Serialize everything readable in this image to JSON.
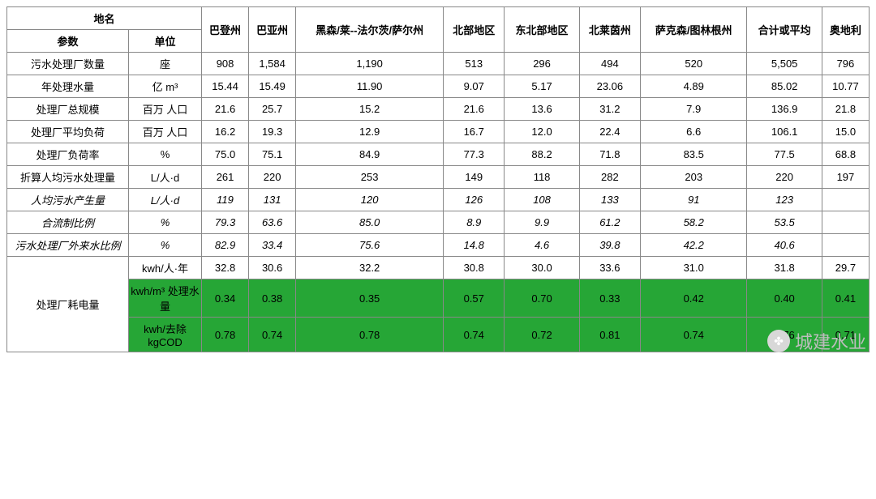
{
  "header": {
    "placeName": "地名",
    "param": "参数",
    "unit": "单位",
    "regions": [
      "巴登州",
      "巴亚州",
      "黑森/莱--法尔茨/萨尔州",
      "北部地区",
      "东北部地区",
      "北莱茵州",
      "萨克森/图林根州",
      "合计或平均",
      "奥地利"
    ]
  },
  "rows": [
    {
      "param": "污水处理厂数量",
      "unit": "座",
      "italic": false,
      "highlight": false,
      "cells": [
        "908",
        "1,584",
        "1,190",
        "513",
        "296",
        "494",
        "520",
        "5,505",
        "796"
      ]
    },
    {
      "param": "年处理水量",
      "unit": "亿 m³",
      "italic": false,
      "highlight": false,
      "cells": [
        "15.44",
        "15.49",
        "11.90",
        "9.07",
        "5.17",
        "23.06",
        "4.89",
        "85.02",
        "10.77"
      ]
    },
    {
      "param": "处理厂总规模",
      "unit": "百万 人口",
      "italic": false,
      "highlight": false,
      "cells": [
        "21.6",
        "25.7",
        "15.2",
        "21.6",
        "13.6",
        "31.2",
        "7.9",
        "136.9",
        "21.8"
      ]
    },
    {
      "param": "处理厂平均负荷",
      "unit": "百万 人口",
      "italic": false,
      "highlight": false,
      "cells": [
        "16.2",
        "19.3",
        "12.9",
        "16.7",
        "12.0",
        "22.4",
        "6.6",
        "106.1",
        "15.0"
      ]
    },
    {
      "param": "处理厂负荷率",
      "unit": "%",
      "italic": false,
      "highlight": false,
      "cells": [
        "75.0",
        "75.1",
        "84.9",
        "77.3",
        "88.2",
        "71.8",
        "83.5",
        "77.5",
        "68.8"
      ]
    },
    {
      "param": "折算人均污水处理量",
      "unit": "L/人·d",
      "italic": false,
      "highlight": false,
      "cells": [
        "261",
        "220",
        "253",
        "149",
        "118",
        "282",
        "203",
        "220",
        "197"
      ]
    },
    {
      "param": "人均污水产生量",
      "unit": "L/人·d",
      "italic": true,
      "highlight": false,
      "cells": [
        "119",
        "131",
        "120",
        "126",
        "108",
        "133",
        "91",
        "123",
        ""
      ]
    },
    {
      "param": "合流制比例",
      "unit": "%",
      "italic": true,
      "highlight": false,
      "cells": [
        "79.3",
        "63.6",
        "85.0",
        "8.9",
        "9.9",
        "61.2",
        "58.2",
        "53.5",
        ""
      ]
    },
    {
      "param": "污水处理厂外来水比例",
      "unit": "%",
      "italic": true,
      "highlight": false,
      "cells": [
        "82.9",
        "33.4",
        "75.6",
        "14.8",
        "4.6",
        "39.8",
        "42.2",
        "40.6",
        ""
      ]
    }
  ],
  "group": {
    "label": "处理厂耗电量",
    "subrows": [
      {
        "unit": "kwh/人·年",
        "italic": false,
        "highlight": false,
        "cells": [
          "32.8",
          "30.6",
          "32.2",
          "30.8",
          "30.0",
          "33.6",
          "31.0",
          "31.8",
          "29.7"
        ]
      },
      {
        "unit": "kwh/m³ 处理水量",
        "italic": false,
        "highlight": true,
        "cells": [
          "0.34",
          "0.38",
          "0.35",
          "0.57",
          "0.70",
          "0.33",
          "0.42",
          "0.40",
          "0.41"
        ]
      },
      {
        "unit": "kwh/去除kgCOD",
        "italic": false,
        "highlight": true,
        "cells": [
          "0.78",
          "0.74",
          "0.78",
          "0.74",
          "0.72",
          "0.81",
          "0.74",
          "0.76",
          "0.71"
        ]
      }
    ]
  },
  "watermark": "城建水业",
  "colors": {
    "highlight": "#26a636",
    "border": "#888888",
    "text": "#000000",
    "watermark": "#bdbdbd"
  }
}
